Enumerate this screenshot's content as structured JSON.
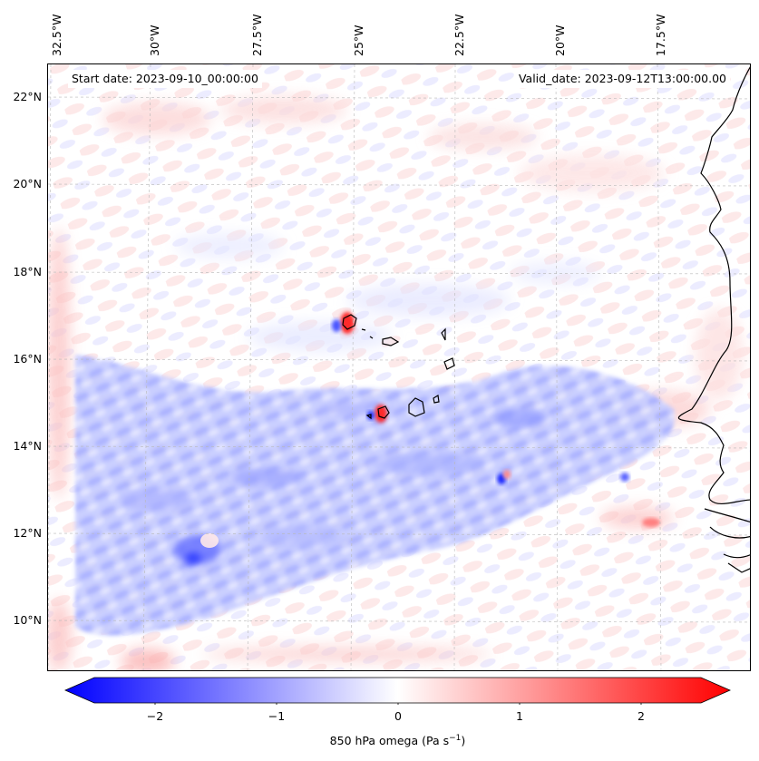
{
  "map": {
    "start_date": "Start date: 2023-09-10_00:00:00",
    "valid_date": "Valid_date: 2023-09-12T13:00:00.00",
    "variable": "850 hPa omega",
    "units": "Pa s",
    "units_exponent": "−1",
    "longitudes": [
      "32.5°W",
      "30°W",
      "27.5°W",
      "25°W",
      "22.5°W",
      "20°W",
      "17.5°W"
    ],
    "latitudes": [
      "22°N",
      "20°N",
      "18°N",
      "16°N",
      "14°N",
      "12°N",
      "10°N"
    ]
  },
  "colorbar": {
    "range": [
      -2.5,
      2.5
    ],
    "ticks": [
      "−2",
      "−1",
      "0",
      "1",
      "2"
    ],
    "tick_values": [
      -2,
      -1,
      0,
      1,
      2
    ],
    "low_color": "#0000ff",
    "mid_color": "#ffffff",
    "high_color": "#ff0000"
  }
}
